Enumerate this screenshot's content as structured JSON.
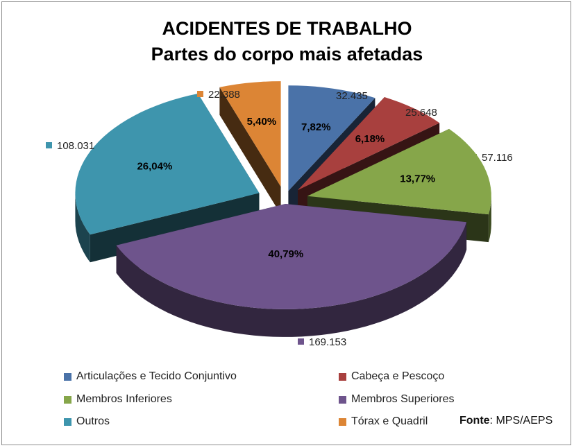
{
  "chart_data": {
    "type": "pie",
    "title": "ACIDENTES DE TRABALHO",
    "subtitle": "Partes do corpo mais afetadas",
    "legend_position": "bottom",
    "slices": [
      {
        "name": "Articulações e Tecido Conjuntivo",
        "value": 32435,
        "value_label": "32.435",
        "percent_label": "7,82%",
        "color": "#4a72a8"
      },
      {
        "name": "Cabeça e Pescoço",
        "value": 25648,
        "value_label": "25.648",
        "percent_label": "6,18%",
        "color": "#a8403e"
      },
      {
        "name": "Membros Inferiores",
        "value": 57116,
        "value_label": "57.116",
        "percent_label": "13,77%",
        "color": "#86a64a"
      },
      {
        "name": "Membros Superiores",
        "value": 169153,
        "value_label": "169.153",
        "percent_label": "40,79%",
        "color": "#6e548c"
      },
      {
        "name": "Outros",
        "value": 108031,
        "value_label": "108.031",
        "percent_label": "26,04%",
        "color": "#3e95ad"
      },
      {
        "name": "Tórax e Quadril",
        "value": 22388,
        "value_label": "22.388",
        "percent_label": "5,40%",
        "color": "#dc8535"
      }
    ]
  },
  "source": {
    "label": "Fonte",
    "text": ": MPS/AEPS"
  }
}
